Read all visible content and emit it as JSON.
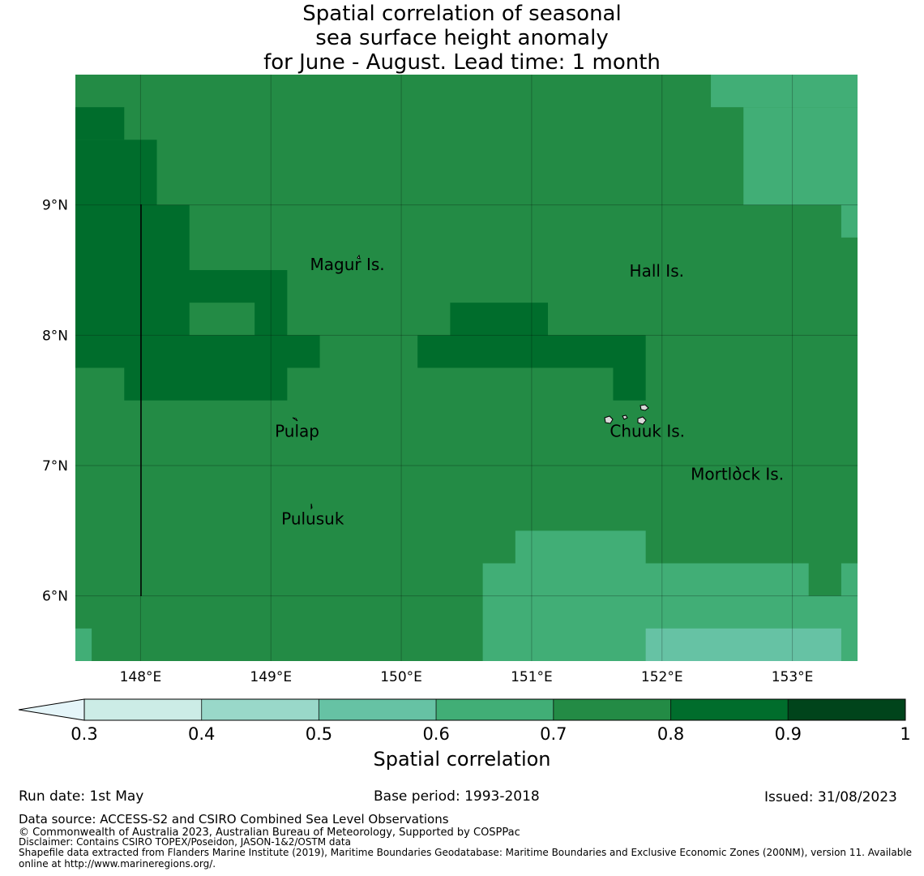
{
  "title": {
    "line1": "Spatial correlation of seasonal",
    "line2": "sea surface height anomaly",
    "line3": "for June - August. Lead time: 1 month"
  },
  "map": {
    "lon_ticks": [
      "148°E",
      "149°E",
      "150°E",
      "151°E",
      "152°E",
      "153°E"
    ],
    "lat_ticks": [
      "9°N",
      "8°N",
      "7°N",
      "6°N"
    ],
    "lon_range": [
      147.5,
      153.5
    ],
    "lat_range": [
      5.5,
      10.0
    ],
    "places": [
      {
        "name": "Magur Is.",
        "lon": 149.3,
        "lat": 8.5
      },
      {
        "name": "Hall Is.",
        "lon": 151.75,
        "lat": 8.45
      },
      {
        "name": "Pulap",
        "lon": 149.03,
        "lat": 7.22
      },
      {
        "name": "Chuuk Is.",
        "lon": 151.6,
        "lat": 7.22
      },
      {
        "name": "Mortlock Is.",
        "lon": 152.22,
        "lat": 6.89
      },
      {
        "name": "Pulusuk",
        "lon": 149.08,
        "lat": 6.55
      }
    ],
    "colors": {
      "0.6": "#41ae76",
      "0.7": "#238b45",
      "0.8": "#006d2c",
      "0.5": "#66c2a4"
    }
  },
  "colorbar": {
    "ticks": [
      "0.3",
      "0.4",
      "0.5",
      "0.6",
      "0.7",
      "0.8",
      "0.9",
      "1"
    ],
    "colors": [
      "#ccece6",
      "#99d8c9",
      "#66c2a4",
      "#41ae76",
      "#238b45",
      "#006d2c",
      "#00441b"
    ],
    "extend_color": "#e5f5f9",
    "label": "Spatial correlation"
  },
  "footer": {
    "run_date": "Run date: 1st May",
    "base_period": "Base period: 1993-2018",
    "issued": "Issued: 31/08/2023",
    "source": "Data source: ACCESS-S2 and CSIRO Combined Sea Level Observations",
    "copyright": "© Commonwealth of Australia 2023, Australian Bureau of Meteorology, Supported by COSPPac",
    "disclaimer": "Disclaimer: Contains CSIRO TOPEX/Poseidon, JASON-1&2/OSTM data",
    "shapefile1": "Shapefile data extracted from Flanders Marine Institute (2019), Maritime Boundaries Geodatabase: Maritime Boundaries and Exclusive Economic Zones (200NM), version 11. Available",
    "shapefile2": "online at http://www.marineregions.org/."
  }
}
